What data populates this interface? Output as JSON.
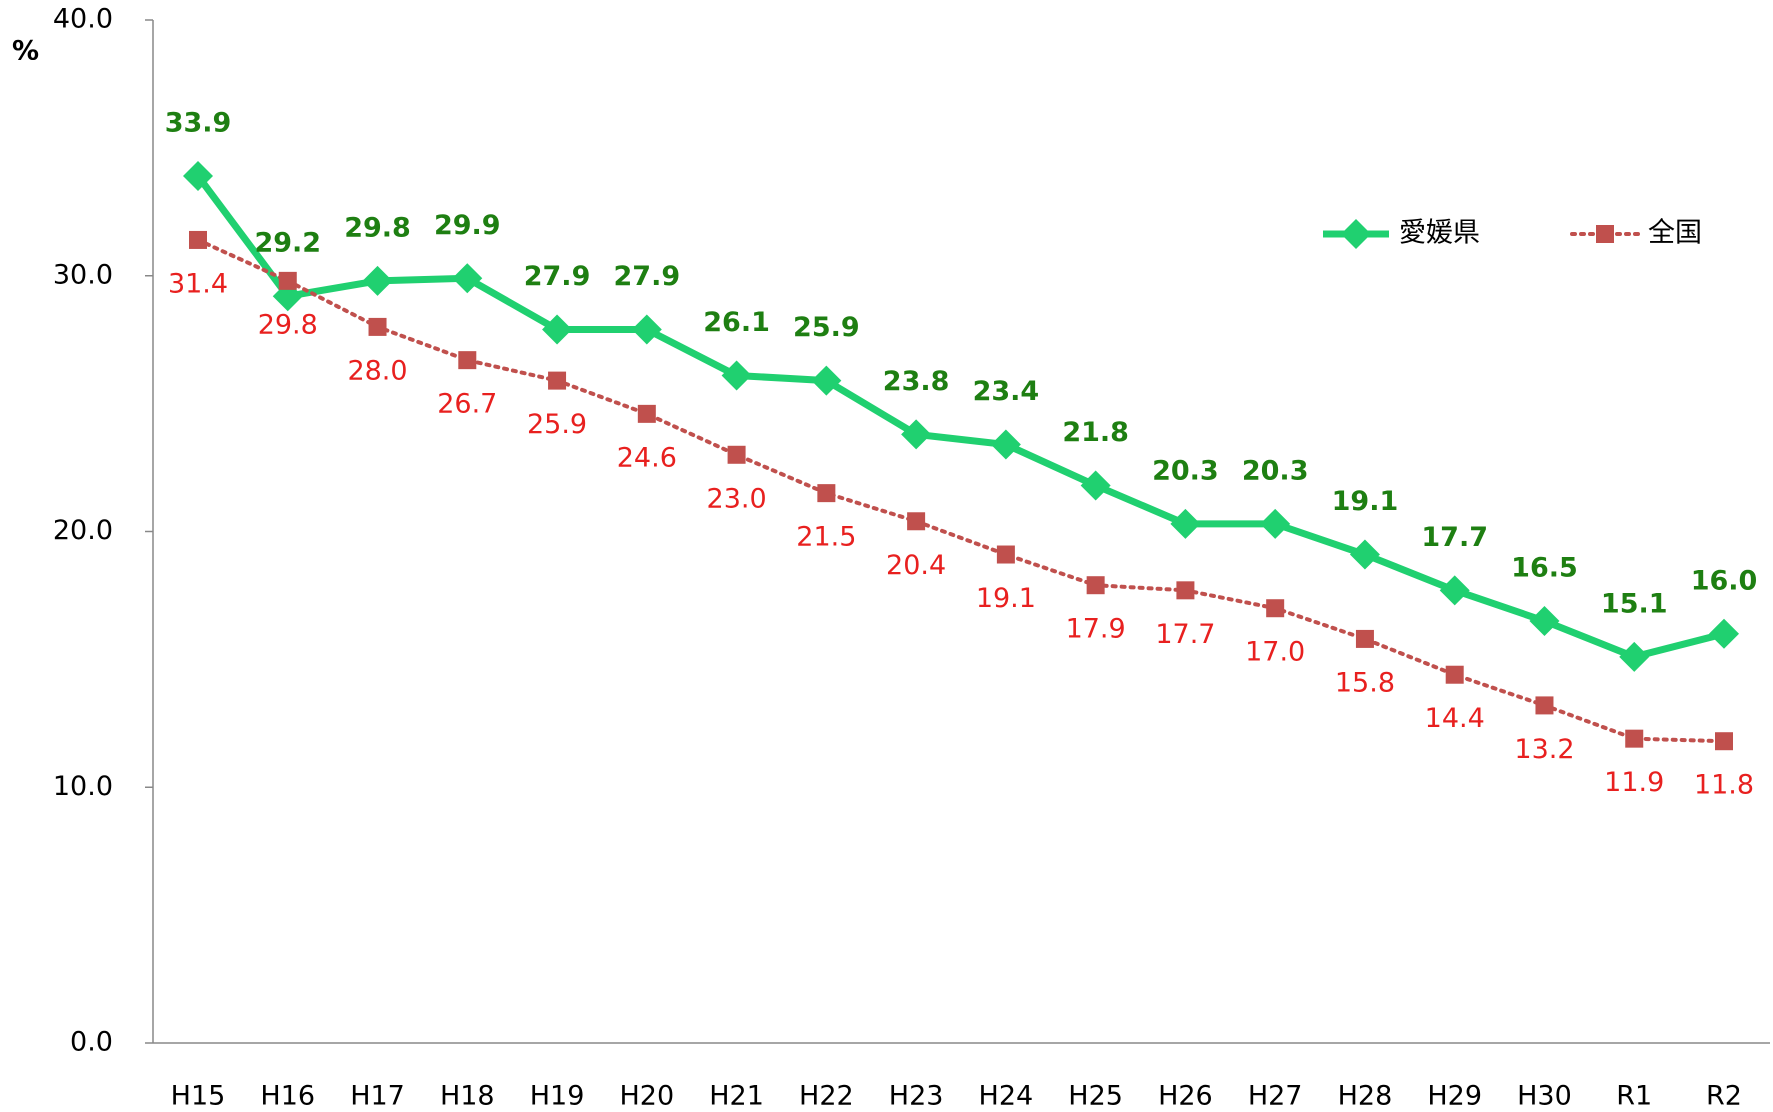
{
  "chart_data": {
    "type": "line",
    "y_label": "%",
    "categories": [
      "H15",
      "H16",
      "H17",
      "H18",
      "H19",
      "H20",
      "H21",
      "H22",
      "H23",
      "H24",
      "H25",
      "H26",
      "H27",
      "H28",
      "H29",
      "H30",
      "R1",
      "R2"
    ],
    "series": [
      {
        "name": "愛媛県",
        "color": "#20d070",
        "label_color": "#1e7f12",
        "marker": "diamond",
        "style": "solid",
        "values": [
          33.9,
          29.2,
          29.8,
          29.9,
          27.9,
          27.9,
          26.1,
          25.9,
          23.8,
          23.4,
          21.8,
          20.3,
          20.3,
          19.1,
          17.7,
          16.5,
          15.1,
          16.0
        ],
        "value_labels": [
          "33.9",
          "29.2",
          "29.8",
          "29.9",
          "27.9",
          "27.9",
          "26.1",
          "25.9",
          "23.8",
          "23.4",
          "21.8",
          "20.3",
          "20.3",
          "19.1",
          "17.7",
          "16.5",
          "15.1",
          "16.0"
        ]
      },
      {
        "name": "全国",
        "color": "#c0504d",
        "label_color": "#e8201f",
        "marker": "square",
        "style": "dotted",
        "values": [
          31.4,
          29.8,
          28.0,
          26.7,
          25.9,
          24.6,
          23.0,
          21.5,
          20.4,
          19.1,
          17.9,
          17.7,
          17.0,
          15.8,
          14.4,
          13.2,
          11.9,
          11.8
        ],
        "value_labels": [
          "31.4",
          "29.8",
          "28.0",
          "26.7",
          "25.9",
          "24.6",
          "23.0",
          "21.5",
          "20.4",
          "19.1",
          "17.9",
          "17.7",
          "17.0",
          "15.8",
          "14.4",
          "13.2",
          "11.9",
          "11.8"
        ]
      }
    ],
    "ylim": [
      0,
      40
    ],
    "yticks": [
      {
        "value": 0,
        "label": "0.0"
      },
      {
        "value": 10,
        "label": "10.0"
      },
      {
        "value": 20,
        "label": "20.0"
      },
      {
        "value": 30,
        "label": "30.0"
      },
      {
        "value": 40,
        "label": "40.0"
      }
    ],
    "legend": "upper right"
  }
}
